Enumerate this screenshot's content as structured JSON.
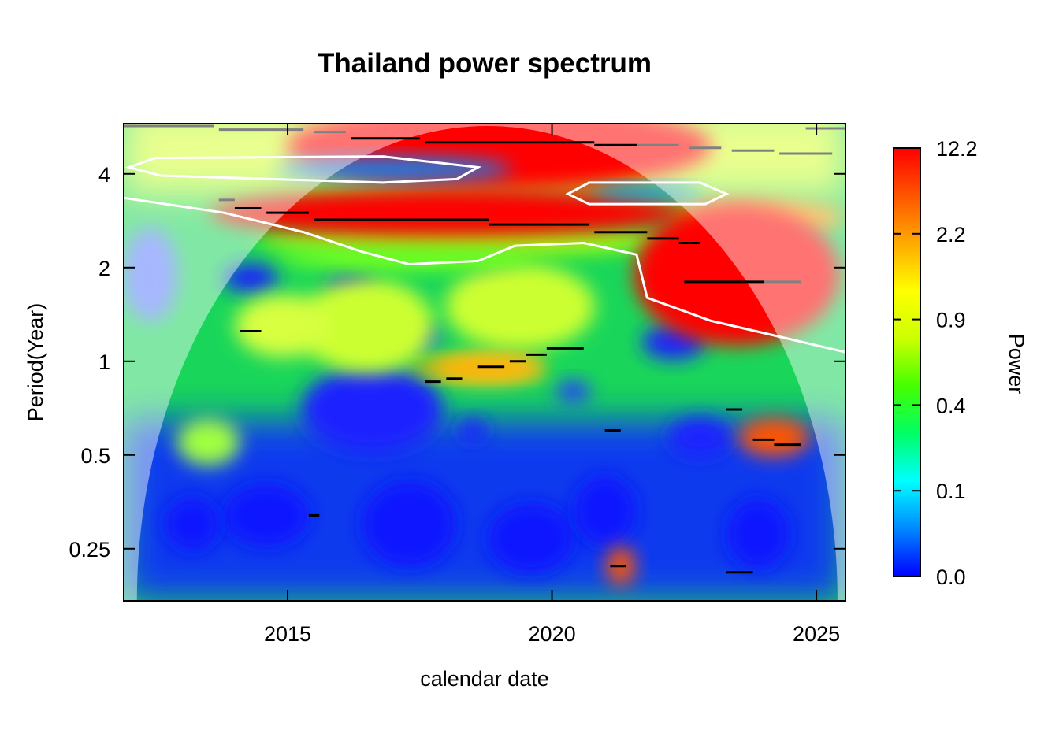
{
  "chart_data": {
    "type": "heatmap",
    "title": "Thailand power spectrum",
    "xlabel": "calendar date",
    "ylabel": "Period(Year)",
    "colorbar_label": "Power",
    "x_ticks": [
      "2015",
      "2020",
      "2025"
    ],
    "x_tick_values": [
      2015,
      2020,
      2025
    ],
    "y_ticks": [
      "0.25",
      "0.5",
      "1",
      "2",
      "4"
    ],
    "y_tick_values": [
      0.25,
      0.5,
      1,
      2,
      4
    ],
    "y_scale": "log2",
    "xlim": [
      2011.9,
      2025.55
    ],
    "ylim": [
      0.17,
      5.8
    ],
    "colorbar_ticks": [
      "0.0",
      "0.1",
      "0.4",
      "0.9",
      "2.2",
      "12.2"
    ],
    "colorbar_colors": [
      "#0000ff",
      "#0088ff",
      "#00ffff",
      "#00ff66",
      "#44ff00",
      "#ccff00",
      "#ffff00",
      "#ffaa00",
      "#ff5500",
      "#ff0000"
    ],
    "cone_of_influence": "shaded outside",
    "significance_contour_color": "#ffffff",
    "ridge_line_color": "#000000",
    "hotspots": [
      {
        "x": 2019.0,
        "period": 4.9,
        "power": 12.2
      },
      {
        "x": 2023.5,
        "period": 1.9,
        "power": 12.2
      },
      {
        "x": 2018.0,
        "period": 3.0,
        "power": 10.0
      },
      {
        "x": 2017.0,
        "period": 4.15,
        "power": 0.05
      },
      {
        "x": 2021.8,
        "period": 3.5,
        "power": 0.05
      },
      {
        "x": 2018.6,
        "period": 0.95,
        "power": 2.2
      },
      {
        "x": 2024.2,
        "period": 0.57,
        "power": 4.0
      },
      {
        "x": 2021.3,
        "period": 0.22,
        "power": 6.0
      }
    ]
  }
}
